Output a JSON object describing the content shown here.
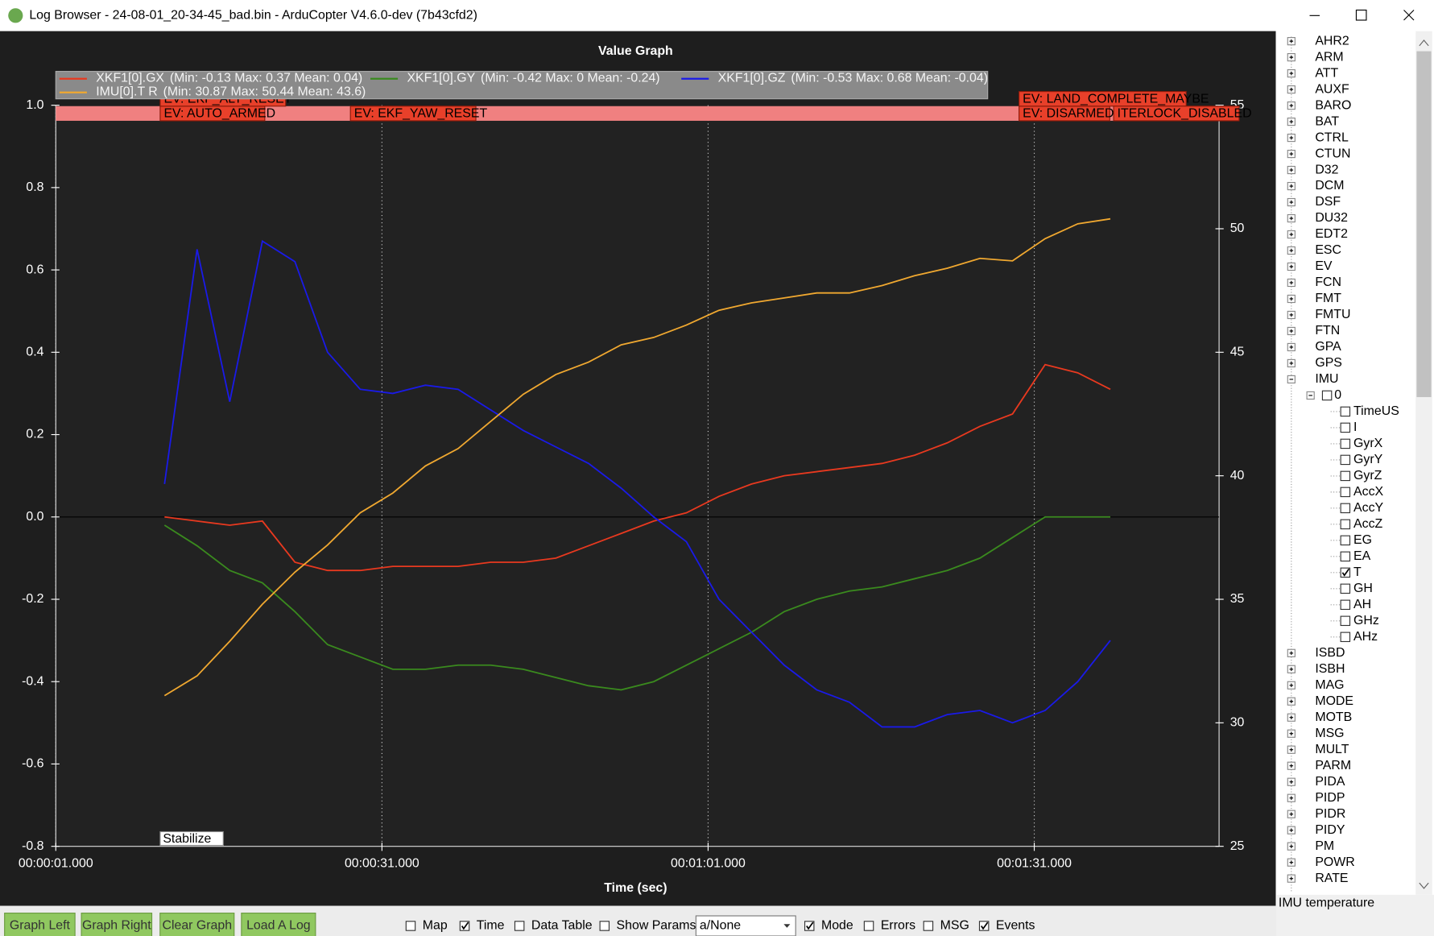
{
  "window": {
    "title": "Log Browser - 24-08-01_20-34-45_bad.bin - ArduCopter V4.6.0-dev (7b43cfd2)"
  },
  "chart_data": {
    "type": "line",
    "title": "Value Graph",
    "xlabel": "Time (sec)",
    "xlim": [
      1,
      108
    ],
    "xticks": [
      {
        "value": 1,
        "label": "00:00:01.000"
      },
      {
        "value": 31,
        "label": "00:00:31.000"
      },
      {
        "value": 61,
        "label": "00:01:01.000"
      },
      {
        "value": 91,
        "label": "00:01:31.000"
      }
    ],
    "ylim": [
      -0.8,
      1
    ],
    "yticks": [
      -0.8,
      -0.6,
      -0.4,
      -0.2,
      {
        "value": 0,
        "label": "0.0"
      },
      0.2,
      0.4,
      0.6,
      0.8,
      {
        "value": 1,
        "label": "1.0"
      }
    ],
    "y2lim": [
      25,
      55
    ],
    "y2ticks": [
      25,
      30,
      35,
      40,
      45,
      50,
      55
    ],
    "grid": true,
    "x": [
      11,
      14,
      17,
      20,
      23,
      26,
      29,
      32,
      35,
      38,
      41,
      44,
      47,
      50,
      53,
      56,
      59,
      62,
      65,
      68,
      71,
      74,
      77,
      80,
      83,
      86,
      89,
      92,
      95,
      98
    ],
    "series": [
      {
        "name": "XKF1[0].GX",
        "stats": "(Min: -0.13 Max: 0.37 Mean: 0.04)",
        "color": "#e8391f",
        "values": [
          0.0,
          -0.01,
          -0.02,
          -0.01,
          -0.11,
          -0.13,
          -0.13,
          -0.12,
          -0.12,
          -0.12,
          -0.11,
          -0.11,
          -0.1,
          -0.07,
          -0.04,
          -0.01,
          0.01,
          0.05,
          0.08,
          0.1,
          0.11,
          0.12,
          0.13,
          0.15,
          0.18,
          0.22,
          0.25,
          0.37,
          0.35,
          0.31
        ]
      },
      {
        "name": "XKF1[0].GY",
        "stats": "(Min: -0.42 Max: 0 Mean: -0.24)",
        "color": "#3a8a1e",
        "values": [
          -0.02,
          -0.07,
          -0.13,
          -0.16,
          -0.23,
          -0.31,
          -0.34,
          -0.37,
          -0.37,
          -0.36,
          -0.36,
          -0.37,
          -0.39,
          -0.41,
          -0.42,
          -0.4,
          -0.36,
          -0.32,
          -0.28,
          -0.23,
          -0.2,
          -0.18,
          -0.17,
          -0.15,
          -0.13,
          -0.1,
          -0.05,
          0.0,
          0.0,
          0.0
        ]
      },
      {
        "name": "XKF1[0].GZ",
        "stats": "(Min: -0.53 Max: 0.68 Mean: -0.04)",
        "color": "#1a1ae8",
        "values": [
          0.08,
          0.65,
          0.28,
          0.67,
          0.62,
          0.4,
          0.31,
          0.3,
          0.32,
          0.31,
          0.26,
          0.21,
          0.17,
          0.13,
          0.07,
          0.0,
          -0.06,
          -0.2,
          -0.28,
          -0.36,
          -0.42,
          -0.45,
          -0.51,
          -0.51,
          -0.48,
          -0.47,
          -0.5,
          -0.47,
          -0.4,
          -0.3
        ]
      },
      {
        "name": "IMU[0].T  R",
        "stats": "(Min: 30.87 Max: 50.44 Mean: 43.6)",
        "color": "#f0a830",
        "axis": "y2",
        "values": [
          31.1,
          31.9,
          33.3,
          34.8,
          36.1,
          37.2,
          38.5,
          39.3,
          40.4,
          41.1,
          42.2,
          43.3,
          44.1,
          44.6,
          45.3,
          45.6,
          46.1,
          46.7,
          47.0,
          47.2,
          47.4,
          47.4,
          47.7,
          48.1,
          48.4,
          48.8,
          48.7,
          49.6,
          50.2,
          50.4
        ]
      }
    ],
    "events": [
      {
        "label": "EV: AUTO_ARMED",
        "x": 10.6
      },
      {
        "label": "EV: EKF_ALT_RESET",
        "x": 10.6
      },
      {
        "label": "EV: EKF_YAW_RESET",
        "x": 28.1
      },
      {
        "label": "EV: DISARMED",
        "x": 89.6
      },
      {
        "label": "EV: LAND_COMPLETE_MAYBE",
        "x": 89.6
      },
      {
        "label": "ITERLOCK_DISABLED",
        "x": 98.3
      }
    ],
    "modes": [
      {
        "label": "Stabilize",
        "x": 10.6
      }
    ]
  },
  "tree": [
    {
      "label": "AHR2"
    },
    {
      "label": "ARM"
    },
    {
      "label": "ATT"
    },
    {
      "label": "AUXF"
    },
    {
      "label": "BARO"
    },
    {
      "label": "BAT"
    },
    {
      "label": "CTRL"
    },
    {
      "label": "CTUN"
    },
    {
      "label": "D32"
    },
    {
      "label": "DCM"
    },
    {
      "label": "DSF"
    },
    {
      "label": "DU32"
    },
    {
      "label": "EDT2"
    },
    {
      "label": "ESC"
    },
    {
      "label": "EV"
    },
    {
      "label": "FCN"
    },
    {
      "label": "FMT"
    },
    {
      "label": "FMTU"
    },
    {
      "label": "FTN"
    },
    {
      "label": "GPA"
    },
    {
      "label": "GPS"
    },
    {
      "label": "IMU",
      "children": [
        {
          "label": "0",
          "checked": false,
          "children": [
            {
              "label": "TimeUS",
              "checked": false
            },
            {
              "label": "I",
              "checked": false
            },
            {
              "label": "GyrX",
              "checked": false
            },
            {
              "label": "GyrY",
              "checked": false
            },
            {
              "label": "GyrZ",
              "checked": false
            },
            {
              "label": "AccX",
              "checked": false
            },
            {
              "label": "AccY",
              "checked": false
            },
            {
              "label": "AccZ",
              "checked": false
            },
            {
              "label": "EG",
              "checked": false
            },
            {
              "label": "EA",
              "checked": false
            },
            {
              "label": "T",
              "checked": true
            },
            {
              "label": "GH",
              "checked": false
            },
            {
              "label": "AH",
              "checked": false
            },
            {
              "label": "GHz",
              "checked": false
            },
            {
              "label": "AHz",
              "checked": false
            }
          ]
        }
      ]
    },
    {
      "label": "ISBD"
    },
    {
      "label": "ISBH"
    },
    {
      "label": "MAG"
    },
    {
      "label": "MODE"
    },
    {
      "label": "MOTB"
    },
    {
      "label": "MSG"
    },
    {
      "label": "MULT"
    },
    {
      "label": "PARM"
    },
    {
      "label": "PIDA"
    },
    {
      "label": "PIDP"
    },
    {
      "label": "PIDR"
    },
    {
      "label": "PIDY"
    },
    {
      "label": "PM"
    },
    {
      "label": "POWR"
    },
    {
      "label": "RATE"
    }
  ],
  "status": "IMU temperature",
  "toolbar": {
    "buttons": [
      "Graph Left",
      "Graph Right",
      "Clear Graph",
      "Load A Log"
    ],
    "checkboxes": [
      {
        "label": "Map",
        "checked": false
      },
      {
        "label": "Time",
        "checked": true
      },
      {
        "label": "Data Table",
        "checked": false
      },
      {
        "label": "Show Params",
        "checked": false
      },
      {
        "label": "Mode",
        "checked": true
      },
      {
        "label": "Errors",
        "checked": false
      },
      {
        "label": "MSG",
        "checked": false
      },
      {
        "label": "Events",
        "checked": true
      }
    ],
    "dropdown": "a/None"
  }
}
